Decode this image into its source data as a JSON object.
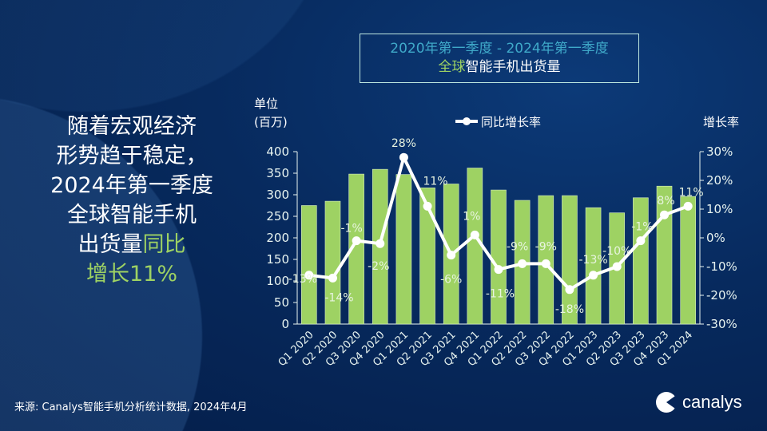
{
  "headline": {
    "lines": [
      "随着宏观经济",
      "形势趋于稳定，",
      "2024年第一季度",
      "全球智能手机"
    ],
    "line5_white": "出货量",
    "line5_green": "同比",
    "line6_green": "增长11%"
  },
  "title": {
    "line1": "2020年第一季度 - 2024年第一季度",
    "line2_green": "全球",
    "line2_white": "智能手机出货量"
  },
  "footer": "来源: Canalys智能手机分析统计数据, 2024年4月",
  "logo": "canalys",
  "colors": {
    "bar": "#9ed263",
    "line": "#ffffff",
    "title_blue": "#3fa9c9",
    "background": "#062558"
  },
  "chart_data": {
    "type": "bar+line",
    "categories": [
      "Q1 2020",
      "Q2 2020",
      "Q3 2020",
      "Q4 2020",
      "Q1 2021",
      "Q2 2021",
      "Q3 2021",
      "Q4 2021",
      "Q1 2022",
      "Q2 2022",
      "Q3 2022",
      "Q4 2022",
      "Q1 2023",
      "Q2 2023",
      "Q3 2023",
      "Q4 2023",
      "Q1 2024"
    ],
    "left_axis": {
      "title_line1": "单位",
      "title_line2": "(百万)",
      "range": [
        0,
        400
      ],
      "ticks": [
        "0",
        "50",
        "100",
        "150",
        "200",
        "250",
        "300",
        "350",
        "400"
      ]
    },
    "right_axis": {
      "title": "增长率",
      "range": [
        -30,
        30
      ],
      "ticks": [
        "-30%",
        "-20%",
        "-10%",
        "0%",
        "10%",
        "20%",
        "30%"
      ]
    },
    "bars": {
      "values": [
        275,
        285,
        348,
        359,
        347,
        316,
        325,
        362,
        311,
        287,
        298,
        298,
        270,
        258,
        293,
        320,
        296
      ]
    },
    "line": {
      "name": "同比增长率",
      "values": [
        -13,
        -14,
        -1,
        -2,
        28,
        11,
        -6,
        1,
        -11,
        -9,
        -9,
        -18,
        -13,
        -10,
        -1,
        8,
        11
      ],
      "labels": [
        "-13%",
        "-14%",
        "-1%",
        "-2%",
        "28%",
        "11%",
        "-6%",
        "1%",
        "-11%",
        "-9%",
        "-9%",
        "-18%",
        "-13%",
        "-10%",
        "-1%",
        "8%",
        "11%"
      ]
    },
    "legend": "top-center",
    "grid": false
  }
}
